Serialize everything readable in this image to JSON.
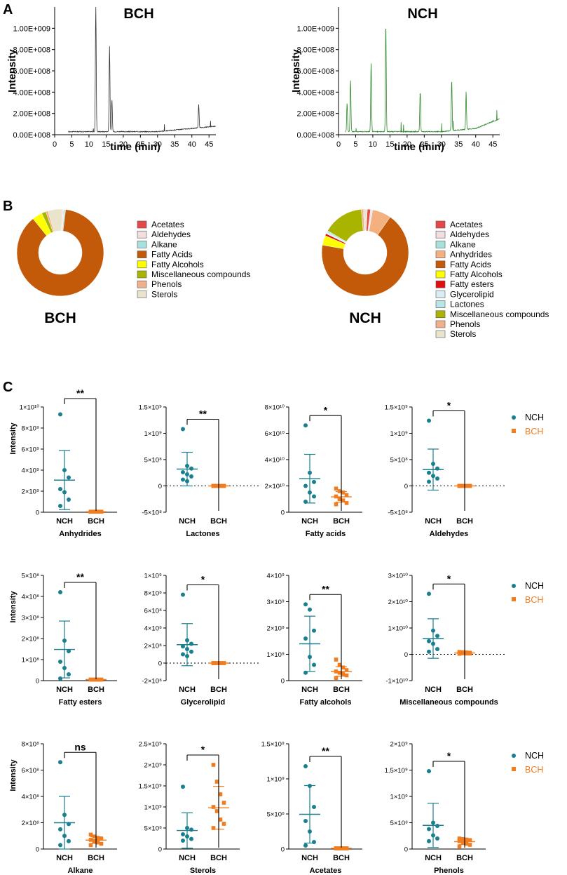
{
  "panels": {
    "a": "A",
    "b": "B",
    "c": "C"
  },
  "colors": {
    "bch_line": "#333333",
    "nch_line": "#2e8b2e",
    "nch_point": "#1a7f8e",
    "bch_point": "#f07d20"
  },
  "chromatograms": [
    {
      "title": "BCH",
      "xlabel": "time (min)",
      "ylabel": "Intensity",
      "xticks": [
        "0",
        "5",
        "10",
        "15",
        "20",
        "25",
        "30",
        "35",
        "40",
        "45"
      ],
      "yticks": [
        "0.00E+008",
        "2.00E+008",
        "4.00E+008",
        "6.00E+008",
        "8.00E+008",
        "1.00E+009"
      ],
      "peaks_min": [
        12.0,
        16.0,
        16.7,
        42.0
      ],
      "peaks_height_e8": [
        12.0,
        8.0,
        3.0,
        2.2
      ]
    },
    {
      "title": "NCH",
      "xlabel": "time (min)",
      "ylabel": "Intensity",
      "xticks": [
        "0",
        "5",
        "10",
        "15",
        "20",
        "25",
        "30",
        "35",
        "40",
        "45"
      ],
      "yticks": [
        "0.00E+008",
        "2.00E+008",
        "4.00E+008",
        "6.00E+008",
        "8.00E+008",
        "1.00E+009"
      ],
      "peaks_min": [
        2.5,
        3.5,
        9.5,
        13.8,
        23.8,
        33.0,
        37.2
      ],
      "peaks_height_e8": [
        2.7,
        4.9,
        6.5,
        10.2,
        3.8,
        4.8,
        3.5
      ]
    }
  ],
  "chart_data": [
    {
      "type": "pie",
      "title": "BCH",
      "categories": [
        "Acetates",
        "Aldehydes",
        "Alkane",
        "Fatty Acids",
        "Fatty Alcohols",
        "Miscellaneous compounds",
        "Phenols",
        "Sterols"
      ],
      "values": [
        0.2,
        0.5,
        0.5,
        87.2,
        3.8,
        1.6,
        0.8,
        5.4
      ],
      "colors": [
        "#e8474a",
        "#f2dede",
        "#a8e0db",
        "#c25a0a",
        "#ffff00",
        "#a8b400",
        "#f2b08a",
        "#ebe4cc"
      ]
    },
    {
      "type": "pie",
      "title": "NCH",
      "categories": [
        "Acetates",
        "Aldehydes",
        "Alkane",
        "Anhydrides",
        "Fatty Acids",
        "Fatty Alcohols",
        "Fatty esters",
        "Glycerolipid",
        "Lactones",
        "Miscellaneous compounds",
        "Phenols",
        "Sterols"
      ],
      "values": [
        1.2,
        0.5,
        0.3,
        7.0,
        68.0,
        3.6,
        0.8,
        0.6,
        0.6,
        15.2,
        0.8,
        1.4
      ],
      "colors": [
        "#e8474a",
        "#f2dede",
        "#a8e0db",
        "#f5b080",
        "#c25a0a",
        "#ffff00",
        "#e01010",
        "#d8eef4",
        "#b8e6e4",
        "#a8b400",
        "#f2b08a",
        "#ebe4cc"
      ]
    }
  ],
  "scatter_legend": {
    "nch": "NCH",
    "bch": "BCH"
  },
  "groups": [
    "NCH",
    "BCH"
  ],
  "y_axis_title": "Intensity",
  "scatter_panels": [
    {
      "title": "Anhydrides",
      "sig": "**",
      "ymin": 0,
      "ymax": 10000000000.0,
      "ticks": [
        "0",
        "2×10⁹",
        "4×10⁹",
        "6×10⁹",
        "8×10⁹",
        "1×10¹⁰"
      ],
      "tickvals": [
        0,
        2000000000.0,
        4000000000.0,
        6000000000.0,
        8000000000.0,
        10000000000.0
      ],
      "zero_line": false,
      "nch": [
        9300000000.0,
        4000000000.0,
        3300000000.0,
        2200000000.0,
        1900000000.0,
        1200000000.0,
        600000000.0
      ],
      "nch_mean": 3050000000.0,
      "nch_sd": 2800000000.0,
      "bch": [
        50000000.0,
        50000000.0,
        50000000.0,
        50000000.0,
        50000000.0,
        50000000.0,
        50000000.0,
        50000000.0
      ],
      "bch_mean": 50000000.0,
      "bch_sd": 0
    },
    {
      "title": "Lactones",
      "sig": "**",
      "ymin": -500000000.0,
      "ymax": 1500000000.0,
      "ticks": [
        "-5×10⁸",
        "0",
        "5×10⁸",
        "1×10⁹",
        "1.5×10⁹"
      ],
      "tickvals": [
        -500000000.0,
        0,
        500000000.0,
        1000000000.0,
        1500000000.0
      ],
      "zero_line": true,
      "nch": [
        1080000000.0,
        380000000.0,
        330000000.0,
        260000000.0,
        220000000.0,
        180000000.0,
        120000000.0,
        90000000.0
      ],
      "nch_mean": 320000000.0,
      "nch_sd": 320000000.0,
      "bch": [
        0,
        0,
        0,
        0,
        0,
        0,
        0,
        0,
        0
      ],
      "bch_mean": 0,
      "bch_sd": 0
    },
    {
      "title": "Fatty acids",
      "sig": "*",
      "ymin": 0,
      "ymax": 80000000000.0,
      "ticks": [
        "0",
        "2×10¹⁰",
        "4×10¹⁰",
        "6×10¹⁰",
        "8×10¹⁰"
      ],
      "tickvals": [
        0,
        20000000000.0,
        40000000000.0,
        60000000000.0,
        80000000000.0
      ],
      "zero_line": false,
      "nch": [
        66000000000.0,
        30000000000.0,
        23000000000.0,
        20000000000.0,
        15000000000.0,
        12000000000.0,
        8000000000.0
      ],
      "nch_mean": 25500000000.0,
      "nch_sd": 18500000000.0,
      "bch": [
        18000000000.0,
        16000000000.0,
        15000000000.0,
        13000000000.0,
        12000000000.0,
        10000000000.0,
        9000000000.0,
        7000000000.0,
        6000000000.0
      ],
      "bch_mean": 11700000000.0,
      "bch_sd": 4000000000.0
    },
    {
      "title": "Aldehydes",
      "sig": "*",
      "ymin": -500000000.0,
      "ymax": 1500000000.0,
      "ticks": [
        "-5×10⁸",
        "0",
        "5×10⁸",
        "1×10⁹",
        "1.5×10⁹"
      ],
      "tickvals": [
        -500000000.0,
        0,
        500000000.0,
        1000000000.0,
        1500000000.0
      ],
      "zero_line": true,
      "nch": [
        1240000000.0,
        420000000.0,
        330000000.0,
        250000000.0,
        190000000.0,
        140000000.0,
        80000000.0
      ],
      "nch_mean": 310000000.0,
      "nch_sd": 390000000.0,
      "bch": [
        0,
        0,
        0,
        0,
        0,
        0,
        0,
        0,
        0
      ],
      "bch_mean": 0,
      "bch_sd": 0
    },
    {
      "title": "Fatty esters",
      "sig": "**",
      "ymin": 0,
      "ymax": 500000000.0,
      "ticks": [
        "0",
        "1×10⁸",
        "2×10⁸",
        "3×10⁸",
        "4×10⁸",
        "5×10⁸"
      ],
      "tickvals": [
        0,
        100000000.0,
        200000000.0,
        300000000.0,
        400000000.0,
        500000000.0
      ],
      "zero_line": false,
      "nch": [
        420000000.0,
        190000000.0,
        140000000.0,
        90000000.0,
        60000000.0,
        30000000.0,
        10000000.0
      ],
      "nch_mean": 148000000.0,
      "nch_sd": 135000000.0,
      "bch": [
        5000000.0,
        5000000.0,
        5000000.0,
        5000000.0,
        5000000.0,
        5000000.0,
        5000000.0,
        5000000.0
      ],
      "bch_mean": 5000000.0,
      "bch_sd": 0
    },
    {
      "title": "Glycerolipid",
      "sig": "*",
      "ymin": -200000000.0,
      "ymax": 1000000000.0,
      "ticks": [
        "-2×10⁸",
        "0",
        "2×10⁸",
        "4×10⁸",
        "6×10⁸",
        "8×10⁸",
        "1×10⁹"
      ],
      "tickvals": [
        -200000000.0,
        0,
        200000000.0,
        400000000.0,
        600000000.0,
        800000000.0,
        1000000000.0
      ],
      "zero_line": true,
      "nch": [
        780000000.0,
        260000000.0,
        220000000.0,
        190000000.0,
        160000000.0,
        130000000.0,
        100000000.0,
        80000000.0
      ],
      "nch_mean": 210000000.0,
      "nch_sd": 240000000.0,
      "bch": [
        0,
        0,
        0,
        0,
        0,
        0,
        0,
        0,
        0
      ],
      "bch_mean": 0,
      "bch_sd": 0
    },
    {
      "title": "Fatty alcohols",
      "sig": "**",
      "ymin": 0,
      "ymax": 4000000000.0,
      "ticks": [
        "0",
        "1×10⁹",
        "2×10⁹",
        "3×10⁹",
        "4×10⁹"
      ],
      "tickvals": [
        0,
        1000000000.0,
        2000000000.0,
        3000000000.0,
        4000000000.0
      ],
      "zero_line": false,
      "nch": [
        2900000000.0,
        2700000000.0,
        1900000000.0,
        1600000000.0,
        900000000.0,
        600000000.0,
        300000000.0
      ],
      "nch_mean": 1400000000.0,
      "nch_sd": 1050000000.0,
      "bch": [
        800000000.0,
        600000000.0,
        500000000.0,
        400000000.0,
        350000000.0,
        300000000.0,
        250000000.0,
        200000000.0,
        100000000.0
      ],
      "bch_mean": 350000000.0,
      "bch_sd": 180000000.0
    },
    {
      "title": "Miscellaneous compounds",
      "sig": "*",
      "ymin": -10000000000.0,
      "ymax": 30000000000.0,
      "ticks": [
        "-1×10¹⁰",
        "0",
        "1×10¹⁰",
        "2×10¹⁰",
        "3×10¹⁰"
      ],
      "tickvals": [
        -10000000000.0,
        0,
        10000000000.0,
        20000000000.0,
        30000000000.0
      ],
      "zero_line": true,
      "nch": [
        23000000000.0,
        9000000000.0,
        7000000000.0,
        5000000000.0,
        4000000000.0,
        2000000000.0,
        1000000000.0
      ],
      "nch_mean": 6000000000.0,
      "nch_sd": 7500000000.0,
      "bch": [
        900000000.0,
        800000000.0,
        700000000.0,
        600000000.0,
        500000000.0,
        400000000.0,
        300000000.0,
        300000000.0,
        200000000.0
      ],
      "bch_mean": 500000000.0,
      "bch_sd": 200000000.0
    },
    {
      "title": "Alkane",
      "sig": "ns",
      "ymin": 0,
      "ymax": 800000000.0,
      "ticks": [
        "0",
        "2×10⁸",
        "4×10⁸",
        "6×10⁸",
        "8×10⁸"
      ],
      "tickvals": [
        0,
        200000000.0,
        400000000.0,
        600000000.0,
        800000000.0
      ],
      "zero_line": false,
      "nch": [
        660000000.0,
        260000000.0,
        190000000.0,
        150000000.0,
        100000000.0,
        60000000.0,
        30000000.0
      ],
      "nch_mean": 200000000.0,
      "nch_sd": 200000000.0,
      "bch": [
        110000000.0,
        95000000.0,
        85000000.0,
        80000000.0,
        70000000.0,
        60000000.0,
        50000000.0,
        40000000.0,
        30000000.0
      ],
      "bch_mean": 68000000.0,
      "bch_sd": 25000000.0
    },
    {
      "title": "Sterols",
      "sig": "*",
      "ymin": 0,
      "ymax": 2500000000.0,
      "ticks": [
        "0",
        "5×10⁸",
        "1×10⁹",
        "1.5×10⁹",
        "2×10⁹",
        "2.5×10⁹"
      ],
      "tickvals": [
        0,
        500000000.0,
        1000000000.0,
        1500000000.0,
        2000000000.0,
        2500000000.0
      ],
      "zero_line": false,
      "nch": [
        1480000000.0,
        500000000.0,
        460000000.0,
        350000000.0,
        300000000.0,
        240000000.0,
        200000000.0
      ],
      "nch_mean": 440000000.0,
      "nch_sd": 420000000.0,
      "bch": [
        2000000000.0,
        1600000000.0,
        1300000000.0,
        1100000000.0,
        1000000000.0,
        900000000.0,
        700000000.0,
        600000000.0,
        500000000.0
      ],
      "bch_mean": 980000000.0,
      "bch_sd": 510000000.0
    },
    {
      "title": "Acetates",
      "sig": "**",
      "ymin": 0,
      "ymax": 1500000000.0,
      "ticks": [
        "0",
        "5×10⁸",
        "1×10⁹",
        "1.5×10⁹"
      ],
      "tickvals": [
        0,
        500000000.0,
        1000000000.0,
        1500000000.0
      ],
      "zero_line": false,
      "nch": [
        1180000000.0,
        900000000.0,
        600000000.0,
        400000000.0,
        250000000.0,
        100000000.0,
        50000000.0
      ],
      "nch_mean": 495000000.0,
      "nch_sd": 410000000.0,
      "bch": [
        10000000.0,
        10000000.0,
        10000000.0,
        10000000.0,
        10000000.0,
        10000000.0,
        10000000.0,
        10000000.0
      ],
      "bch_mean": 10000000.0,
      "bch_sd": 0
    },
    {
      "title": "Phenols",
      "sig": "*",
      "ymin": 0,
      "ymax": 2000000000.0,
      "ticks": [
        "0",
        "5×10⁸",
        "1×10⁹",
        "1.5×10⁹",
        "2×10⁹"
      ],
      "tickvals": [
        0,
        500000000.0,
        1000000000.0,
        1500000000.0,
        2000000000.0
      ],
      "zero_line": false,
      "nch": [
        1480000000.0,
        500000000.0,
        440000000.0,
        380000000.0,
        260000000.0,
        200000000.0,
        150000000.0
      ],
      "nch_mean": 450000000.0,
      "nch_sd": 420000000.0,
      "bch": [
        200000000.0,
        190000000.0,
        180000000.0,
        170000000.0,
        150000000.0,
        120000000.0,
        100000000.0,
        80000000.0,
        50000000.0
      ],
      "bch_mean": 140000000.0,
      "bch_sd": 55000000.0
    }
  ]
}
